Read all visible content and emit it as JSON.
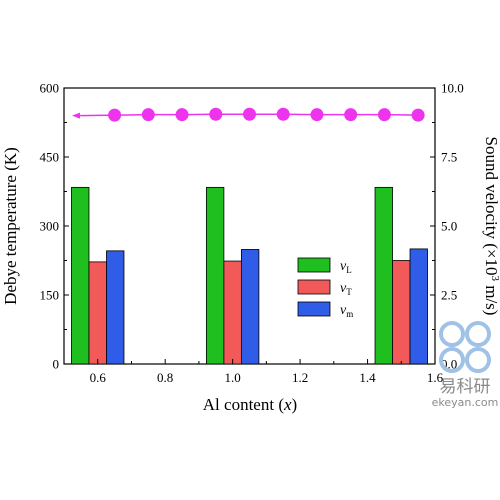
{
  "chart_data": {
    "type": "bar",
    "categories": [
      0.6,
      1.0,
      1.5
    ],
    "series": [
      {
        "name": "v_L",
        "label_main": "v",
        "label_sub": "L",
        "color": "#1fbf1f",
        "axis": "right",
        "values": [
          6.4,
          6.4,
          6.4
        ]
      },
      {
        "name": "v_T",
        "label_main": "v",
        "label_sub": "T",
        "color": "#f25a5a",
        "axis": "right",
        "values": [
          3.7,
          3.73,
          3.75
        ]
      },
      {
        "name": "v_m",
        "label_main": "v",
        "label_sub": "m",
        "color": "#2f5de8",
        "axis": "right",
        "values": [
          4.1,
          4.15,
          4.17
        ]
      }
    ],
    "line_series": {
      "axis": "left",
      "color": "#ee33ee",
      "x": [
        0.55,
        0.65,
        0.75,
        0.85,
        0.95,
        1.05,
        1.15,
        1.25,
        1.35,
        1.45,
        1.55
      ],
      "y": [
        540,
        541,
        542,
        542,
        543,
        543,
        543,
        542,
        542,
        542,
        541
      ]
    },
    "x_axis": {
      "label_main": "Al content (",
      "label_var": "x",
      "label_end": ")",
      "range": [
        0.5,
        1.6
      ],
      "ticks": [
        "0.6",
        "0.8",
        "1.0",
        "1.2",
        "1.4",
        "1.6"
      ]
    },
    "y_left": {
      "label": "Debye temperature (K)",
      "range": [
        0,
        600
      ],
      "ticks": [
        "0",
        "150",
        "300",
        "450",
        "600"
      ]
    },
    "y_right": {
      "label": "Sound velocity (×10³ m/s)",
      "range": [
        0,
        10
      ],
      "ticks": [
        "0.0",
        "2.5",
        "5.0",
        "7.5",
        "10.0"
      ]
    },
    "legend_position": "center-right"
  },
  "watermark": {
    "name": "易科研",
    "url": "ekeyan.com",
    "color": "#9fc2e6"
  }
}
